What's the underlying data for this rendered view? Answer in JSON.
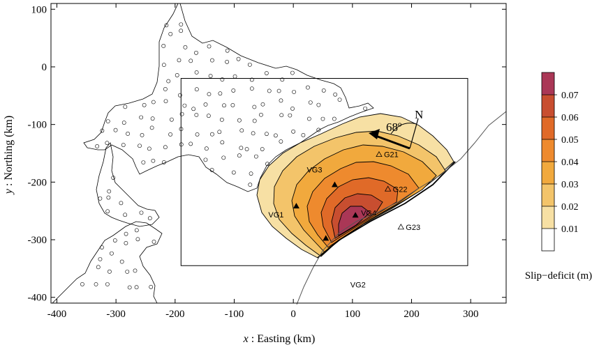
{
  "chart_data": {
    "type": "map",
    "xlabel_var": "x",
    "xlabel_rest": " : Easting (km)",
    "ylabel_var": "y",
    "ylabel_rest": " : Northing (km)",
    "xlim": [
      -410,
      360
    ],
    "ylim": [
      -410,
      110
    ],
    "x_ticks": [
      -400,
      -300,
      -200,
      -100,
      0,
      100,
      200,
      300
    ],
    "y_ticks": [
      100,
      0,
      -100,
      -200,
      -300,
      -400
    ],
    "study_area_box": {
      "x": [
        -190,
        295
      ],
      "y": [
        -345,
        -20
      ]
    },
    "north_arrow": {
      "letter": "N",
      "angle_label": "68º"
    },
    "sites_filled": [
      {
        "name": "VG1",
        "x": 5,
        "y": -242
      },
      {
        "name": "VG2",
        "x": 55,
        "y": -298
      },
      {
        "name": "VG3",
        "x": 70,
        "y": -205
      },
      {
        "name": "VG4",
        "x": 105,
        "y": -258
      }
    ],
    "sites_open": [
      {
        "name": "G21",
        "x": 145,
        "y": -152
      },
      {
        "name": "G22",
        "x": 160,
        "y": -212
      },
      {
        "name": "G23",
        "x": 182,
        "y": -278
      }
    ],
    "colorbar": {
      "title": "Slip−deficit (m)",
      "levels": [
        0.01,
        0.02,
        0.03,
        0.04,
        0.05,
        0.06,
        0.07
      ],
      "colors": [
        "#ffffff",
        "#f7e0a4",
        "#f3c46a",
        "#f1a93d",
        "#ee8a2e",
        "#e06a28",
        "#c84e30",
        "#aa3756"
      ]
    }
  }
}
